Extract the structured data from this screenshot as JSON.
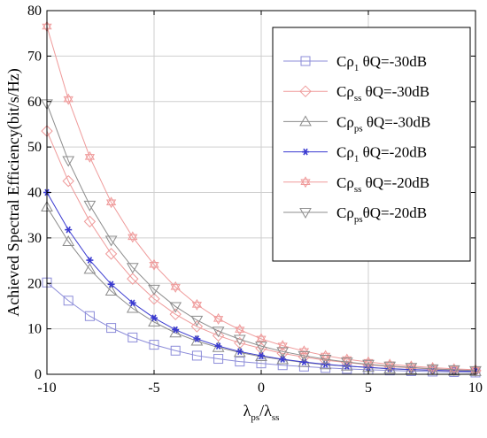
{
  "chart_data": {
    "type": "line",
    "xlabel": {
      "base1": "λ",
      "sub1": "ps",
      "slash": "/",
      "base2": "λ",
      "sub2": "ss"
    },
    "ylabel": "Achieved Spectral Efficiency(bit/s/Hz)",
    "xlim": [
      -10,
      10
    ],
    "ylim": [
      0,
      80
    ],
    "xticks": [
      -10,
      -5,
      0,
      5,
      10
    ],
    "yticks": [
      0,
      10,
      20,
      30,
      40,
      50,
      60,
      70,
      80
    ],
    "grid": true,
    "legend_position": "top-right",
    "x": [
      -10,
      -9,
      -8,
      -7,
      -6,
      -5,
      -4,
      -3,
      -2,
      -1,
      0,
      1,
      2,
      3,
      4,
      5,
      6,
      7,
      8,
      9,
      10
    ],
    "series": [
      {
        "legend": {
          "pre": "Cρ",
          "sub": "1",
          "post": " θQ=-30dB"
        },
        "color": "#8c8cd9",
        "marker": "square",
        "values": [
          20.2,
          16.2,
          12.8,
          10.2,
          8.1,
          6.5,
          5.2,
          4.1,
          3.4,
          2.8,
          2.4,
          2.0,
          1.7,
          1.4,
          1.2,
          1.0,
          0.85,
          0.7,
          0.6,
          0.5,
          0.4
        ]
      },
      {
        "legend": {
          "pre": "Cρ",
          "sub": "ss",
          "post": " θQ=-30dB"
        },
        "color": "#ef9a9a",
        "marker": "diamond",
        "values": [
          53.5,
          42.5,
          33.6,
          26.5,
          21.0,
          16.6,
          13.2,
          10.5,
          8.5,
          6.9,
          5.7,
          4.6,
          3.8,
          3.1,
          2.6,
          2.1,
          1.7,
          1.4,
          1.15,
          0.95,
          0.8
        ]
      },
      {
        "legend": {
          "pre": "Cρ",
          "sub": "ps",
          "post": " θQ=-30dB"
        },
        "color": "#8c8c8c",
        "marker": "triangle-up",
        "values": [
          36.8,
          29.2,
          23.1,
          18.3,
          14.5,
          11.5,
          9.1,
          7.3,
          5.9,
          4.8,
          3.9,
          3.2,
          2.6,
          2.1,
          1.8,
          1.5,
          1.2,
          1.0,
          0.85,
          0.7,
          0.6
        ]
      },
      {
        "legend": {
          "pre": "Cρ",
          "sub": "1",
          "post": " θQ=-20dB"
        },
        "color": "#3a3ad0",
        "marker": "star",
        "values": [
          40.0,
          31.8,
          25.1,
          19.8,
          15.7,
          12.4,
          9.8,
          7.8,
          6.2,
          5.0,
          4.1,
          3.3,
          2.7,
          2.2,
          1.8,
          1.5,
          1.25,
          1.05,
          0.9,
          0.75,
          0.65
        ]
      },
      {
        "legend": {
          "pre": "Cρ",
          "sub": "ss",
          "post": " θQ=-20dB"
        },
        "color": "#ef9a9a",
        "marker": "hexagram",
        "values": [
          76.5,
          60.5,
          47.8,
          37.8,
          30.2,
          24.1,
          19.2,
          15.3,
          12.2,
          9.8,
          7.8,
          6.3,
          5.1,
          4.1,
          3.3,
          2.7,
          2.2,
          1.8,
          1.45,
          1.2,
          1.0
        ]
      },
      {
        "legend": {
          "pre": "Cρ",
          "sub": "ps",
          "post": "θQ=-20dB"
        },
        "color": "#8c8c8c",
        "marker": "triangle-down",
        "values": [
          59.5,
          47.0,
          37.2,
          29.5,
          23.5,
          18.7,
          14.9,
          11.9,
          9.5,
          7.7,
          6.2,
          5.0,
          4.1,
          3.3,
          2.7,
          2.2,
          1.8,
          1.5,
          1.2,
          1.0,
          0.8
        ]
      }
    ]
  }
}
